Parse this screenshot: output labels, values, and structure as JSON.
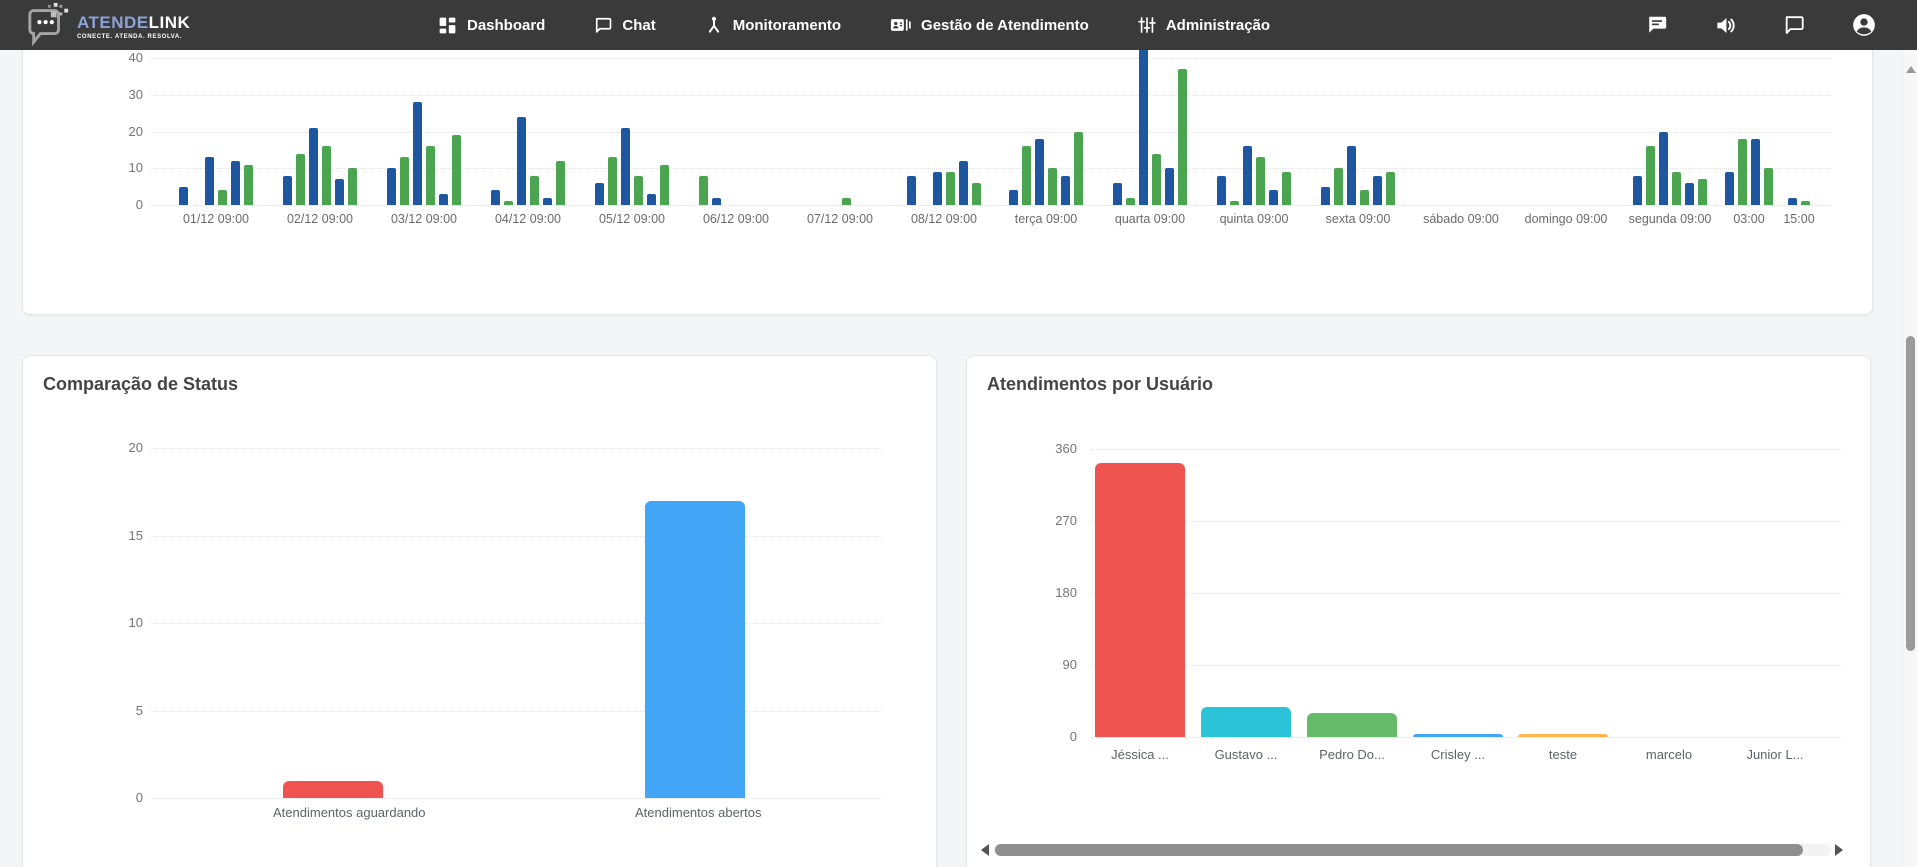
{
  "navbar": {
    "brand": {
      "name_primary": "ATENDE",
      "name_secondary": "LINK",
      "tagline": "CONECTE. ATENDA. RESOLVA."
    },
    "items": [
      {
        "label": "Dashboard",
        "icon": "dashboard-grid-icon"
      },
      {
        "label": "Chat",
        "icon": "chat-bubble-icon"
      },
      {
        "label": "Monitoramento",
        "icon": "monitoring-hub-icon"
      },
      {
        "label": "Gestão de Atendimento",
        "icon": "contact-card-icon"
      },
      {
        "label": "Administração",
        "icon": "tune-sliders-icon"
      }
    ],
    "action_icons": [
      "feedback-icon",
      "volume-icon",
      "chat-outline-icon",
      "account-icon"
    ]
  },
  "chart_data": [
    {
      "type": "bar",
      "title": "",
      "note": "grouped time-series bars, top clipped by navbar (page scrolled)",
      "legend_position": "none",
      "grid": true,
      "ylim": [
        0,
        40
      ],
      "yticks": [
        0,
        10,
        20,
        30,
        40
      ],
      "series_colors": {
        "b": "#1e57a0",
        "g": "#4ba550"
      },
      "categories": [
        "01/12 09:00",
        "02/12 09:00",
        "03/12 09:00",
        "04/12 09:00",
        "05/12 09:00",
        "06/12 09:00",
        "07/12 09:00",
        "08/12 09:00",
        "terça 09:00",
        "quarta 09:00",
        "quinta 09:00",
        "sexta 09:00",
        "sábado 09:00",
        "domingo 09:00",
        "segunda 09:00",
        "03:00",
        "15:00"
      ],
      "groups": [
        [
          [
            "b",
            5
          ],
          null,
          [
            "b",
            13
          ],
          [
            "g",
            4
          ],
          [
            "b",
            12
          ],
          [
            "g",
            11
          ]
        ],
        [
          [
            "b",
            8
          ],
          [
            "g",
            14
          ],
          [
            "b",
            21
          ],
          [
            "g",
            16
          ],
          [
            "b",
            7
          ],
          [
            "g",
            10
          ]
        ],
        [
          [
            "b",
            10
          ],
          [
            "g",
            13
          ],
          [
            "b",
            28
          ],
          [
            "g",
            16
          ],
          [
            "b",
            3
          ],
          [
            "g",
            19
          ]
        ],
        [
          [
            "b",
            4
          ],
          [
            "g",
            1
          ],
          [
            "b",
            24
          ],
          [
            "g",
            8
          ],
          [
            "b",
            2
          ],
          [
            "g",
            12
          ]
        ],
        [
          [
            "b",
            6
          ],
          [
            "g",
            13
          ],
          [
            "b",
            21
          ],
          [
            "g",
            8
          ],
          [
            "b",
            3
          ],
          [
            "g",
            11
          ]
        ],
        [
          [
            "g",
            8
          ],
          [
            "b",
            2
          ],
          null,
          null,
          null,
          null
        ],
        [
          null,
          null,
          null,
          [
            "g",
            2
          ],
          null,
          null
        ],
        [
          [
            "b",
            8
          ],
          null,
          [
            "b",
            9
          ],
          [
            "g",
            9
          ],
          [
            "b",
            12
          ],
          [
            "g",
            6
          ]
        ],
        [
          [
            "b",
            4
          ],
          [
            "g",
            16
          ],
          [
            "b",
            18
          ],
          [
            "g",
            10
          ],
          [
            "b",
            8
          ],
          [
            "g",
            20
          ]
        ],
        [
          [
            "b",
            6
          ],
          [
            "g",
            2
          ],
          [
            "b",
            44
          ],
          [
            "g",
            14
          ],
          [
            "b",
            10
          ],
          [
            "g",
            37
          ]
        ],
        [
          [
            "b",
            8
          ],
          [
            "g",
            1
          ],
          [
            "b",
            16
          ],
          [
            "g",
            13
          ],
          [
            "b",
            4
          ],
          [
            "g",
            9
          ]
        ],
        [
          [
            "b",
            5
          ],
          [
            "g",
            10
          ],
          [
            "b",
            16
          ],
          [
            "g",
            4
          ],
          [
            "b",
            8
          ],
          [
            "g",
            9
          ]
        ],
        [],
        [],
        [
          [
            "b",
            8
          ],
          [
            "g",
            16
          ],
          [
            "b",
            20
          ],
          [
            "g",
            9
          ],
          [
            "b",
            6
          ],
          [
            "g",
            7
          ]
        ],
        [
          [
            "b",
            9
          ],
          [
            "g",
            18
          ],
          [
            "b",
            18
          ],
          [
            "g",
            10
          ]
        ],
        [
          [
            "b",
            2
          ],
          [
            "g",
            1
          ]
        ]
      ]
    },
    {
      "type": "bar",
      "title": "Comparação de Status",
      "grid": true,
      "ylim": [
        0,
        20
      ],
      "yticks": [
        0,
        5,
        10,
        15,
        20
      ],
      "categories": [
        "Atendimentos aguardando",
        "Atendimentos abertos"
      ],
      "values": [
        1,
        17
      ],
      "colors": [
        "#ef5350",
        "#42a5f5"
      ]
    },
    {
      "type": "bar",
      "title": "Atendimentos por Usuário",
      "grid": true,
      "ylim": [
        0,
        360
      ],
      "yticks": [
        0,
        90,
        180,
        270,
        360
      ],
      "categories": [
        "Jéssica ...",
        "Gustavo ...",
        "Pedro Do...",
        "Crisley ...",
        "teste",
        "marcelo",
        "Junior L..."
      ],
      "values": [
        343,
        37,
        30,
        4,
        3,
        0,
        0
      ],
      "colors": [
        "#ef5350",
        "#2bc3d8",
        "#66bb6a",
        "#42a5f5",
        "#ffb74d",
        "#cccccc",
        "#cccccc"
      ]
    }
  ]
}
